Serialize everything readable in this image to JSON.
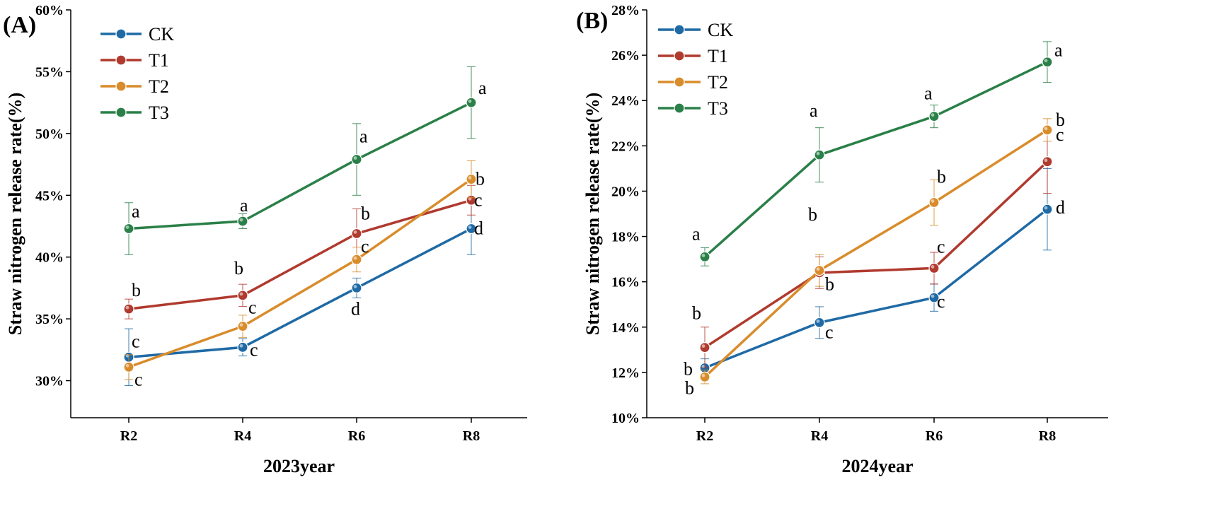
{
  "colors": {
    "CK": "#1f6aa5",
    "T1": "#b03a2e",
    "T2": "#d98c2b",
    "T3": "#2a8048"
  },
  "chart_data": [
    {
      "type": "line",
      "panel_label": "(A)",
      "xlabel": "2023year",
      "ylabel": "Straw nitrogen release rate(%)",
      "categories": [
        "R2",
        "R4",
        "R6",
        "R8"
      ],
      "ylim": [
        0.27,
        0.6
      ],
      "yticks": [
        0.3,
        0.35,
        0.4,
        0.45,
        0.5,
        0.55,
        0.6
      ],
      "ytick_labels": [
        "30%",
        "35%",
        "40%",
        "45%",
        "50%",
        "55%",
        "60%"
      ],
      "legend": [
        "CK",
        "T1",
        "T2",
        "T3"
      ],
      "legend_position": "top-left",
      "series": [
        {
          "name": "CK",
          "values": [
            0.319,
            0.327,
            0.375,
            0.423
          ],
          "errors": [
            0.023,
            0.007,
            0.008,
            0.021
          ],
          "labels": [
            "c",
            "c",
            "d",
            "d"
          ]
        },
        {
          "name": "T1",
          "values": [
            0.358,
            0.369,
            0.419,
            0.446
          ],
          "errors": [
            0.008,
            0.009,
            0.02,
            0.012
          ],
          "labels": [
            "b",
            "b",
            "b",
            "c"
          ]
        },
        {
          "name": "T2",
          "values": [
            0.311,
            0.344,
            0.398,
            0.463
          ],
          "errors": [
            0.01,
            0.009,
            0.01,
            0.015
          ],
          "labels": [
            "c",
            "c",
            "c",
            "b"
          ]
        },
        {
          "name": "T3",
          "values": [
            0.423,
            0.429,
            0.479,
            0.525
          ],
          "errors": [
            0.021,
            0.006,
            0.029,
            0.029
          ],
          "labels": [
            "a",
            "a",
            "a",
            "a"
          ]
        }
      ]
    },
    {
      "type": "line",
      "panel_label": "(B)",
      "xlabel": "2024year",
      "ylabel": "Straw nitrogen release rate(%)",
      "categories": [
        "R2",
        "R4",
        "R6",
        "R8"
      ],
      "ylim": [
        0.1,
        0.28
      ],
      "yticks": [
        0.1,
        0.12,
        0.14,
        0.16,
        0.18,
        0.2,
        0.22,
        0.24,
        0.26,
        0.28
      ],
      "ytick_labels": [
        "10%",
        "12%",
        "14%",
        "16%",
        "18%",
        "20%",
        "22%",
        "24%",
        "26%",
        "28%"
      ],
      "legend": [
        "CK",
        "T1",
        "T2",
        "T3"
      ],
      "legend_position": "top-left",
      "series": [
        {
          "name": "CK",
          "values": [
            0.122,
            0.142,
            0.153,
            0.192
          ],
          "errors": [
            0.004,
            0.007,
            0.006,
            0.018
          ],
          "labels": [
            "b",
            "c",
            "c",
            "d"
          ]
        },
        {
          "name": "T1",
          "values": [
            0.131,
            0.164,
            0.166,
            0.213
          ],
          "errors": [
            0.009,
            0.007,
            0.007,
            0.014
          ],
          "labels": [
            "b",
            "b",
            "c",
            "c"
          ]
        },
        {
          "name": "T2",
          "values": [
            0.118,
            0.165,
            0.195,
            0.227
          ],
          "errors": [
            0.003,
            0.007,
            0.01,
            0.005
          ],
          "labels": [
            "b",
            "b",
            "b",
            "b"
          ]
        },
        {
          "name": "T3",
          "values": [
            0.171,
            0.216,
            0.233,
            0.257
          ],
          "errors": [
            0.004,
            0.012,
            0.005,
            0.009
          ],
          "labels": [
            "a",
            "a",
            "a",
            "a"
          ]
        }
      ]
    }
  ]
}
